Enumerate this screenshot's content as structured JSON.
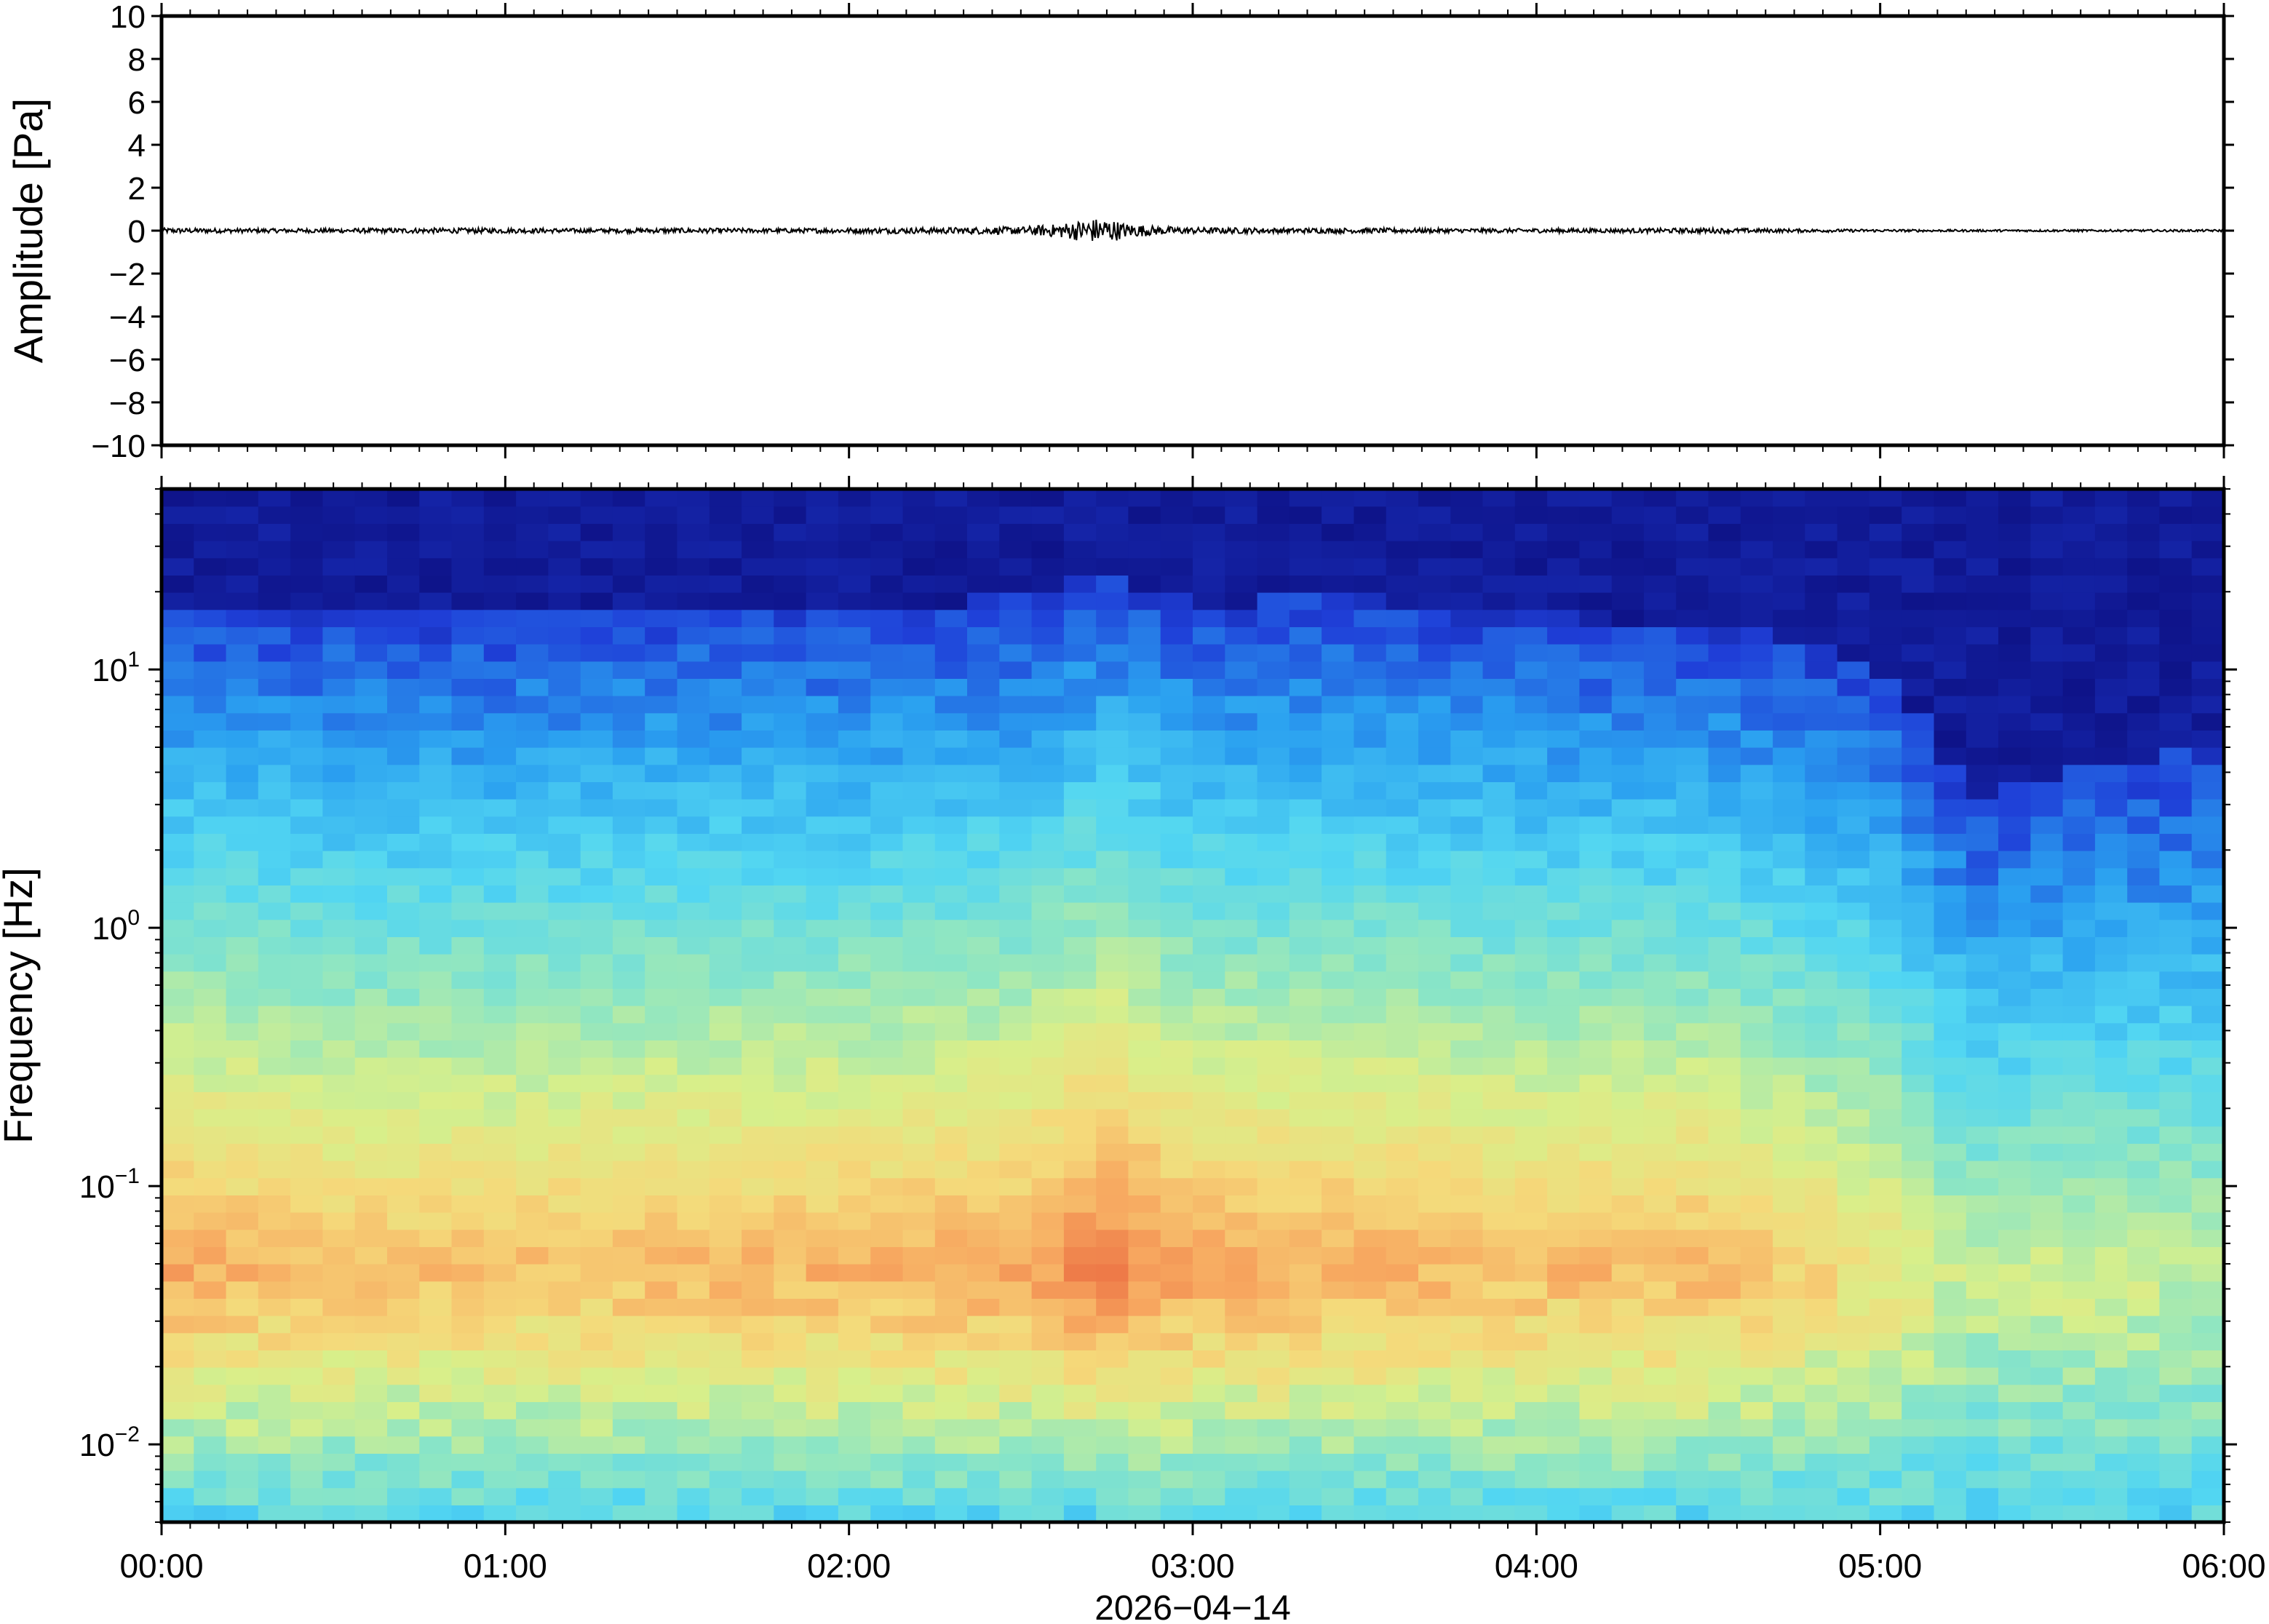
{
  "chart_data": [
    {
      "type": "line",
      "ylabel": "Amplitude [Pa]",
      "ylim": [
        -10,
        10
      ],
      "y_ticks": [
        "10",
        "8",
        "6",
        "4",
        "2",
        "0",
        "−2",
        "−4",
        "−6",
        "−8",
        "−10"
      ],
      "y_tick_values": [
        10,
        8,
        6,
        4,
        2,
        0,
        -2,
        -4,
        -6,
        -8,
        -10
      ],
      "xlim_hours": [
        0,
        6
      ],
      "series": [
        {
          "color": "#000000",
          "x_hours": [
            0.0,
            0.25,
            0.5,
            0.75,
            1.0,
            1.25,
            1.5,
            1.75,
            2.0,
            2.25,
            2.5,
            2.6,
            2.7,
            2.75,
            2.8,
            2.9,
            3.0,
            3.25,
            3.5,
            3.75,
            4.0,
            4.25,
            4.5,
            4.75,
            5.0,
            5.25,
            5.5,
            5.75,
            6.0
          ],
          "envelope_pa": [
            0.12,
            0.1,
            0.1,
            0.12,
            0.12,
            0.1,
            0.12,
            0.1,
            0.12,
            0.14,
            0.18,
            0.3,
            0.55,
            0.6,
            0.35,
            0.2,
            0.15,
            0.12,
            0.12,
            0.1,
            0.1,
            0.1,
            0.12,
            0.08,
            0.06,
            0.05,
            0.05,
            0.05,
            0.05
          ]
        }
      ]
    },
    {
      "type": "heatmap",
      "ylabel": "Frequency [Hz]",
      "y_scale": "log",
      "ylim": [
        0.005,
        50
      ],
      "y_ticks": [
        {
          "value": 10,
          "base": "10",
          "exp": "1"
        },
        {
          "value": 1,
          "base": "10",
          "exp": "0"
        },
        {
          "value": 0.1,
          "base": "10",
          "exp": "−1"
        },
        {
          "value": 0.01,
          "base": "10",
          "exp": "−2"
        }
      ],
      "colormap": "jet",
      "colormap_colors": [
        "#0b0b7a",
        "#1f3fd8",
        "#2aa0f0",
        "#52d6f2",
        "#8fe6c2",
        "#d8ef8a",
        "#f5d97a",
        "#f7a860",
        "#ee7a48"
      ],
      "x_hours": [
        0.0,
        0.5,
        1.0,
        1.5,
        2.0,
        2.5,
        2.75,
        3.0,
        3.5,
        4.0,
        4.5,
        5.0,
        5.25,
        5.5,
        6.0
      ],
      "cutoff_hz": [
        18,
        17,
        17,
        18,
        17,
        19,
        24,
        18,
        19,
        16,
        15,
        10,
        3,
        4,
        5
      ],
      "peak_level": [
        0.88,
        0.82,
        0.82,
        0.84,
        0.85,
        0.88,
        0.98,
        0.88,
        0.86,
        0.83,
        0.84,
        0.72,
        0.6,
        0.62,
        0.6
      ],
      "peak_hz": 0.05,
      "xlim_hours": [
        0,
        6
      ],
      "x_ticks": [
        "00:00",
        "01:00",
        "02:00",
        "03:00",
        "04:00",
        "05:00",
        "06:00"
      ],
      "xlabel": "2026−04−14"
    }
  ]
}
